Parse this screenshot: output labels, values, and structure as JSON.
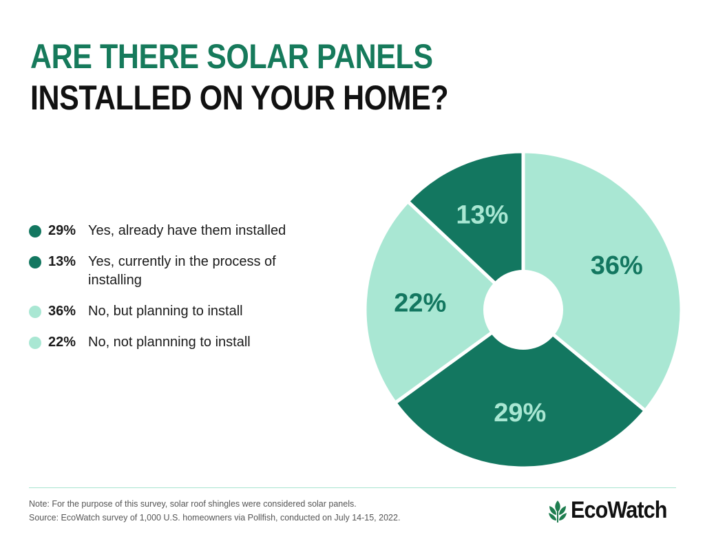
{
  "title": {
    "line1": "ARE THERE SOLAR PANELS",
    "line2": "INSTALLED ON YOUR HOME?"
  },
  "colors": {
    "dark_green": "#137760",
    "light_green": "#a9e7d3",
    "title_green": "#167a5b"
  },
  "chart_data": {
    "type": "pie",
    "donut": true,
    "title": "ARE THERE SOLAR PANELS INSTALLED ON YOUR HOME?",
    "legend_position": "left",
    "slices": [
      {
        "label": "Yes, already have them installed",
        "value": 29,
        "value_label": "29%",
        "color": "#137760",
        "text_color": "#a9e7d3"
      },
      {
        "label": "Yes, currently in the process of installing",
        "value": 13,
        "value_label": "13%",
        "color": "#137760",
        "text_color": "#a9e7d3"
      },
      {
        "label": "No, but planning to install",
        "value": 36,
        "value_label": "36%",
        "color": "#a9e7d3",
        "text_color": "#137760"
      },
      {
        "label": "No, not plannning to install",
        "value": 22,
        "value_label": "22%",
        "color": "#a9e7d3",
        "text_color": "#137760"
      }
    ]
  },
  "legend": [
    {
      "pct": "29%",
      "label": "Yes, already have them installed"
    },
    {
      "pct": "13%",
      "label": "Yes, currently in the process of installing"
    },
    {
      "pct": "36%",
      "label": "No, but planning to install"
    },
    {
      "pct": "22%",
      "label": "No, not plannning to install"
    }
  ],
  "footer": {
    "note": "Note: For the purpose of this survey, solar roof shingles were considered solar panels.",
    "source": "Source: EcoWatch survey of 1,000 U.S. homeowners via Pollfish, conducted on July 14-15, 2022."
  },
  "logo": {
    "text": "EcoWatch",
    "icon": "leaf-icon"
  }
}
